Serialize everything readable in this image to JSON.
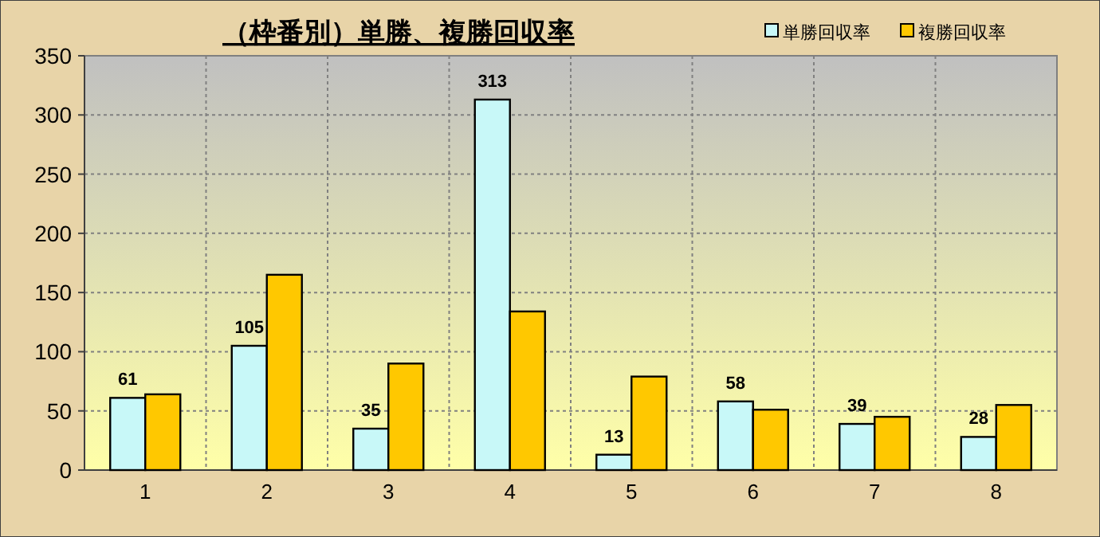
{
  "chart_data": {
    "type": "bar",
    "title": "（枠番別）単勝、複勝回収率",
    "categories": [
      "1",
      "2",
      "3",
      "4",
      "5",
      "6",
      "7",
      "8"
    ],
    "series": [
      {
        "name": "単勝回収率",
        "color": "#c8f8f8",
        "values": [
          61,
          105,
          35,
          313,
          13,
          58,
          39,
          28
        ],
        "value_labels": [
          "61",
          "105",
          "35",
          "313",
          "13",
          "58",
          "39",
          "28"
        ]
      },
      {
        "name": "複勝回収率",
        "color": "#ffc800",
        "values": [
          64,
          165,
          90,
          134,
          79,
          51,
          45,
          55
        ]
      }
    ],
    "ylim": [
      0,
      350
    ],
    "yticks": [
      0,
      50,
      100,
      150,
      200,
      250,
      300,
      350
    ],
    "grid": true,
    "legend": "top right"
  }
}
